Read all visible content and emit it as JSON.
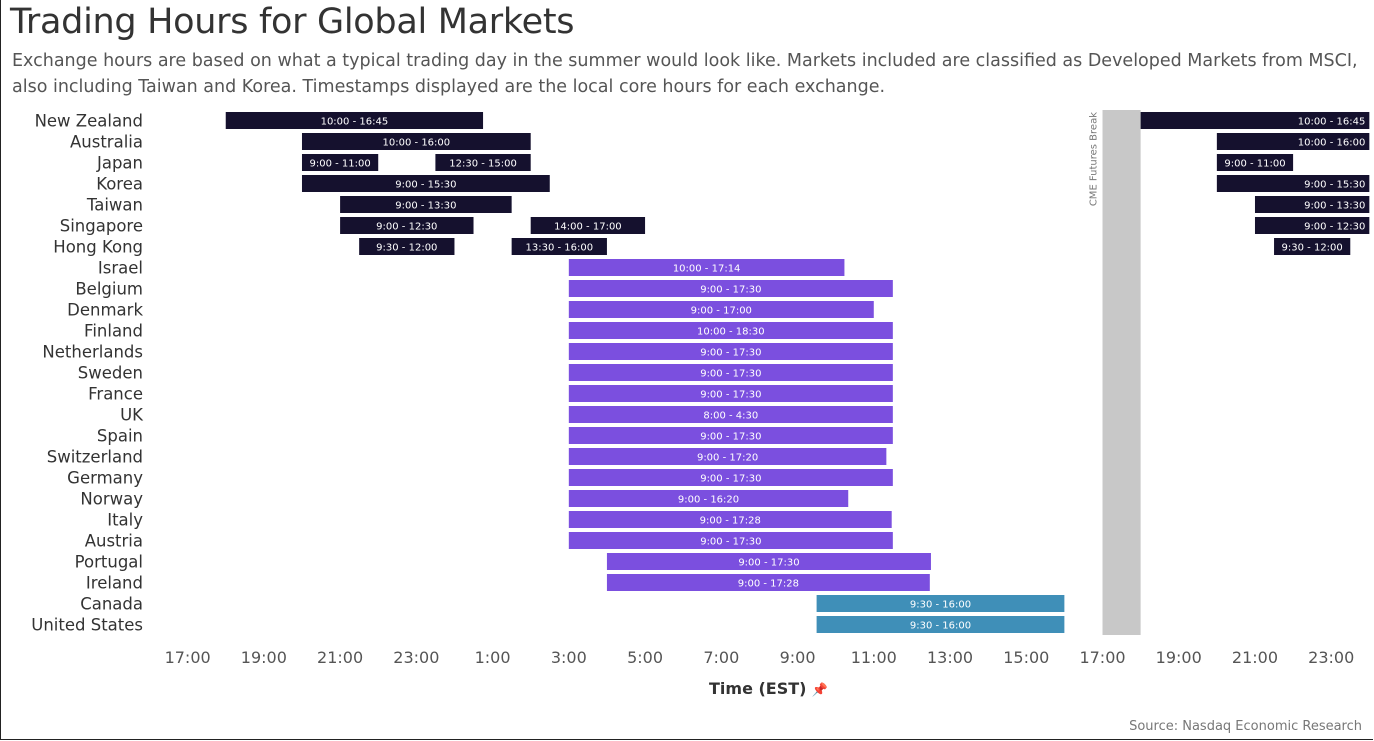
{
  "title": "Trading Hours for Global Markets",
  "subtitle": "Exchange hours are based on what a typical trading day in the summer would look like. Markets included are classified as Developed Markets from MSCI, also including Taiwan and Korea. Timestamps displayed are the local core hours for each exchange.",
  "source": "Source: Nasdaq Economic Research",
  "pin_icon": "pin-icon",
  "chart_data": {
    "type": "gantt",
    "xlabel": "Time (EST)",
    "x_unit": "hours EST, continuous from 16:00 day 1 to 24:00 day 2",
    "xlim": [
      16,
      48
    ],
    "xticks": [
      {
        "value": 17,
        "label": "17:00"
      },
      {
        "value": 19,
        "label": "19:00"
      },
      {
        "value": 21,
        "label": "21:00"
      },
      {
        "value": 23,
        "label": "23:00"
      },
      {
        "value": 25,
        "label": "1:00"
      },
      {
        "value": 27,
        "label": "3:00"
      },
      {
        "value": 29,
        "label": "5:00"
      },
      {
        "value": 31,
        "label": "7:00"
      },
      {
        "value": 33,
        "label": "9:00"
      },
      {
        "value": 35,
        "label": "11:00"
      },
      {
        "value": 37,
        "label": "13:00"
      },
      {
        "value": 39,
        "label": "15:00"
      },
      {
        "value": 41,
        "label": "17:00"
      },
      {
        "value": 43,
        "label": "19:00"
      },
      {
        "value": 45,
        "label": "21:00"
      },
      {
        "value": 47,
        "label": "23:00"
      }
    ],
    "break": {
      "label": "CME Futures Break",
      "start": 41,
      "end": 42,
      "color": "#c8c8c8"
    },
    "colors": {
      "asia": "#15112e",
      "europe": "#7b4fdf",
      "americas": "#3f8fb8"
    },
    "markets": [
      {
        "name": "New Zealand",
        "region": "asia",
        "sessions": [
          {
            "start": 18,
            "end": 24.75,
            "label": "10:00 - 16:45"
          },
          {
            "start": 42,
            "end": 48,
            "label": "10:00 - 16:45"
          }
        ]
      },
      {
        "name": "Australia",
        "region": "asia",
        "sessions": [
          {
            "start": 20,
            "end": 26,
            "label": "10:00 - 16:00"
          },
          {
            "start": 44,
            "end": 48,
            "label": "10:00 - 16:00"
          }
        ]
      },
      {
        "name": "Japan",
        "region": "asia",
        "sessions": [
          {
            "start": 20,
            "end": 22,
            "label": "9:00 - 11:00"
          },
          {
            "start": 23.5,
            "end": 26,
            "label": "12:30 - 15:00"
          },
          {
            "start": 44,
            "end": 46,
            "label": "9:00 - 11:00"
          }
        ]
      },
      {
        "name": "Korea",
        "region": "asia",
        "sessions": [
          {
            "start": 20,
            "end": 26.5,
            "label": "9:00 - 15:30"
          },
          {
            "start": 44,
            "end": 48,
            "label": "9:00 - 15:30"
          }
        ]
      },
      {
        "name": "Taiwan",
        "region": "asia",
        "sessions": [
          {
            "start": 21,
            "end": 25.5,
            "label": "9:00 - 13:30"
          },
          {
            "start": 45,
            "end": 48,
            "label": "9:00 - 13:30"
          }
        ]
      },
      {
        "name": "Singapore",
        "region": "asia",
        "sessions": [
          {
            "start": 21,
            "end": 24.5,
            "label": "9:00 - 12:30"
          },
          {
            "start": 26,
            "end": 29,
            "label": "14:00 - 17:00"
          },
          {
            "start": 45,
            "end": 48,
            "label": "9:00 - 12:30"
          }
        ]
      },
      {
        "name": "Hong Kong",
        "region": "asia",
        "sessions": [
          {
            "start": 21.5,
            "end": 24,
            "label": "9:30 - 12:00"
          },
          {
            "start": 25.5,
            "end": 28,
            "label": "13:30 - 16:00"
          },
          {
            "start": 45.5,
            "end": 47.5,
            "label": "9:30 - 12:00"
          }
        ]
      },
      {
        "name": "Israel",
        "region": "europe",
        "sessions": [
          {
            "start": 27,
            "end": 34.23,
            "label": "10:00 - 17:14"
          }
        ]
      },
      {
        "name": "Belgium",
        "region": "europe",
        "sessions": [
          {
            "start": 27,
            "end": 35.5,
            "label": "9:00 - 17:30"
          }
        ]
      },
      {
        "name": "Denmark",
        "region": "europe",
        "sessions": [
          {
            "start": 27,
            "end": 35,
            "label": "9:00 - 17:00"
          }
        ]
      },
      {
        "name": "Finland",
        "region": "europe",
        "sessions": [
          {
            "start": 27,
            "end": 35.5,
            "label": "10:00 - 18:30"
          }
        ]
      },
      {
        "name": "Netherlands",
        "region": "europe",
        "sessions": [
          {
            "start": 27,
            "end": 35.5,
            "label": "9:00 - 17:30"
          }
        ]
      },
      {
        "name": "Sweden",
        "region": "europe",
        "sessions": [
          {
            "start": 27,
            "end": 35.5,
            "label": "9:00 - 17:30"
          }
        ]
      },
      {
        "name": "France",
        "region": "europe",
        "sessions": [
          {
            "start": 27,
            "end": 35.5,
            "label": "9:00 - 17:30"
          }
        ]
      },
      {
        "name": "UK",
        "region": "europe",
        "sessions": [
          {
            "start": 27,
            "end": 35.5,
            "label": "8:00 - 4:30"
          }
        ]
      },
      {
        "name": "Spain",
        "region": "europe",
        "sessions": [
          {
            "start": 27,
            "end": 35.5,
            "label": "9:00 - 17:30"
          }
        ]
      },
      {
        "name": "Switzerland",
        "region": "europe",
        "sessions": [
          {
            "start": 27,
            "end": 35.33,
            "label": "9:00 - 17:20"
          }
        ]
      },
      {
        "name": "Germany",
        "region": "europe",
        "sessions": [
          {
            "start": 27,
            "end": 35.5,
            "label": "9:00 - 17:30"
          }
        ]
      },
      {
        "name": "Norway",
        "region": "europe",
        "sessions": [
          {
            "start": 27,
            "end": 34.33,
            "label": "9:00 - 16:20"
          }
        ]
      },
      {
        "name": "Italy",
        "region": "europe",
        "sessions": [
          {
            "start": 27,
            "end": 35.47,
            "label": "9:00 - 17:28"
          }
        ]
      },
      {
        "name": "Austria",
        "region": "europe",
        "sessions": [
          {
            "start": 27,
            "end": 35.5,
            "label": "9:00 - 17:30"
          }
        ]
      },
      {
        "name": "Portugal",
        "region": "europe",
        "sessions": [
          {
            "start": 28,
            "end": 36.5,
            "label": "9:00 - 17:30"
          }
        ]
      },
      {
        "name": "Ireland",
        "region": "europe",
        "sessions": [
          {
            "start": 28,
            "end": 36.47,
            "label": "9:00 - 17:28"
          }
        ]
      },
      {
        "name": "Canada",
        "region": "americas",
        "sessions": [
          {
            "start": 33.5,
            "end": 40,
            "label": "9:30 - 16:00"
          }
        ]
      },
      {
        "name": "United States",
        "region": "americas",
        "sessions": [
          {
            "start": 33.5,
            "end": 40,
            "label": "9:30 - 16:00"
          }
        ]
      }
    ]
  }
}
